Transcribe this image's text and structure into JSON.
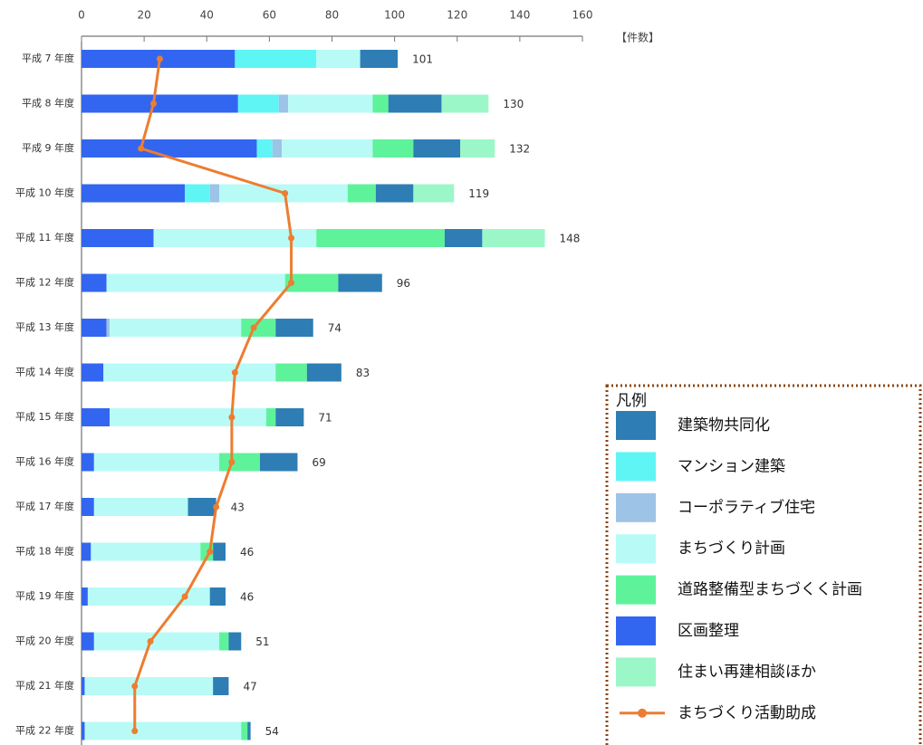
{
  "chart_data": {
    "type": "bar",
    "orientation": "horizontal",
    "x_label": "【件数】",
    "legend_title": "凡例",
    "categories": [
      "平成 7 年度",
      "平成 8 年度",
      "平成 9 年度",
      "平成 10 年度",
      "平成 11 年度",
      "平成 12 年度",
      "平成 13 年度",
      "平成 14 年度",
      "平成 15 年度",
      "平成 16 年度",
      "平成 17 年度",
      "平成 18 年度",
      "平成 19 年度",
      "平成 20 年度",
      "平成 21 年度",
      "平成 22 年度"
    ],
    "totals": [
      101,
      130,
      132,
      119,
      148,
      96,
      74,
      83,
      71,
      69,
      43,
      46,
      46,
      51,
      47,
      54
    ],
    "xlim": [
      0,
      160
    ],
    "xticks": [
      0,
      20,
      40,
      60,
      80,
      100,
      120,
      140,
      160
    ],
    "series": [
      {
        "name": "建築物共同化",
        "color": "#2e7db5",
        "values": [
          12,
          17,
          15,
          12,
          12,
          14,
          12,
          11,
          9,
          12,
          9,
          4,
          5,
          4,
          5,
          1
        ]
      },
      {
        "name": "マンション建築",
        "color": "#5ff5f5",
        "values": [
          26,
          13,
          5,
          8,
          0,
          0,
          0,
          0,
          0,
          0,
          0,
          0,
          0,
          0,
          0,
          0
        ]
      },
      {
        "name": "コーポラティブ住宅",
        "color": "#9dc3e6",
        "values": [
          0,
          3,
          3,
          3,
          0,
          0,
          1,
          0,
          0,
          0,
          0,
          0,
          0,
          0,
          0,
          0
        ]
      },
      {
        "name": "まちづくり計画",
        "color": "#b8fbf6",
        "values": [
          14,
          27,
          29,
          41,
          52,
          57,
          42,
          55,
          50,
          40,
          30,
          35,
          39,
          40,
          41,
          50
        ]
      },
      {
        "name": "道路整備型まちづくく計画",
        "color": "#5ef39a",
        "values": [
          0,
          5,
          13,
          9,
          41,
          17,
          11,
          10,
          3,
          13,
          0,
          4,
          0,
          3,
          0,
          2
        ]
      },
      {
        "name": "区画整理",
        "color": "#3366f0",
        "values": [
          49,
          50,
          56,
          33,
          23,
          8,
          8,
          7,
          9,
          4,
          4,
          3,
          2,
          4,
          1,
          1
        ]
      },
      {
        "name": "住まい再建相談ほか",
        "color": "#9cf7c8",
        "values": [
          0,
          15,
          11,
          13,
          20,
          0,
          0,
          0,
          0,
          0,
          0,
          0,
          0,
          0,
          0,
          0
        ]
      },
      {
        "name": "まちづくり活動助成",
        "type": "line",
        "color": "#ed7d31",
        "values": [
          25,
          23,
          19,
          65,
          67,
          67,
          55,
          49,
          48,
          48,
          43,
          41,
          33,
          22,
          17,
          17
        ]
      }
    ]
  }
}
